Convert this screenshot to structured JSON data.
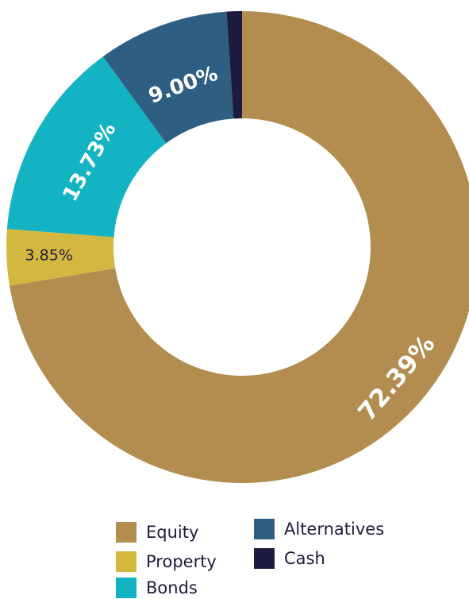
{
  "chart_data": {
    "type": "pie",
    "donut": true,
    "categories": [
      "Equity",
      "Property",
      "Bonds",
      "Alternatives",
      "Cash"
    ],
    "values": [
      72.39,
      3.85,
      13.73,
      9.0,
      1.05
    ],
    "labels": [
      "72.39%",
      "3.85%",
      "13.73%",
      "9.00%",
      "1.05%"
    ],
    "colors": [
      "#B38D50",
      "#D4B73F",
      "#14B3C4",
      "#2E5F83",
      "#1E1B40"
    ],
    "legend_position": "bottom",
    "title": ""
  },
  "legend": {
    "items": [
      {
        "label": "Equity",
        "color": "#B38D50"
      },
      {
        "label": "Property",
        "color": "#D4B73F"
      },
      {
        "label": "Bonds",
        "color": "#14B3C4"
      },
      {
        "label": "Alternatives",
        "color": "#2E5F83"
      },
      {
        "label": "Cash",
        "color": "#1E1B40"
      }
    ]
  }
}
